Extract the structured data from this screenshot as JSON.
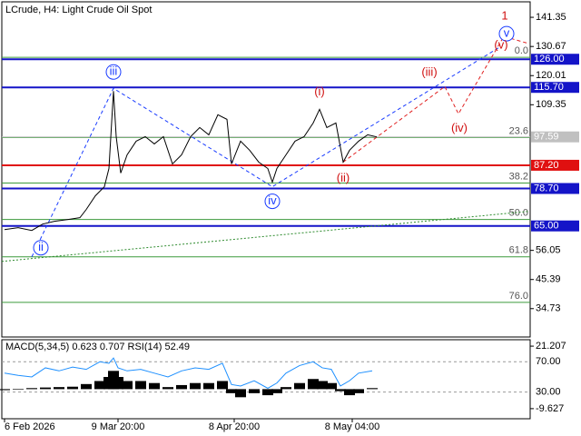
{
  "chart_data": [
    {
      "type": "line",
      "title": "LCrude, H4:  Light Crude Oil Spot",
      "color": "#000000",
      "xlim": [
        0,
        582
      ],
      "xticks": [
        {
          "value": 3,
          "label": "6 Feb 2026"
        },
        {
          "value": 128,
          "label": "9 Mar 20:00"
        },
        {
          "value": 256,
          "label": "8 Apr 20:00"
        },
        {
          "value": 386,
          "label": "8 May 04:00"
        }
      ],
      "ylim": [
        24.35,
        147.02
      ],
      "yticks": [
        141.35,
        130.67,
        120.01,
        109.35,
        56.05,
        45.39,
        34.73
      ],
      "x": [
        3,
        18,
        33,
        45,
        58,
        73,
        86,
        93,
        103,
        113,
        118,
        123,
        126,
        131,
        138,
        148,
        158,
        168,
        178,
        188,
        198,
        208,
        218,
        228,
        238,
        248,
        253,
        263,
        273,
        283,
        293,
        298,
        303,
        313,
        323,
        333,
        343,
        350,
        358,
        368,
        376,
        383,
        393,
        403,
        413
      ],
      "values": [
        63.68,
        64.35,
        63.35,
        65.68,
        66.68,
        67.35,
        68.01,
        71.01,
        76.01,
        79.35,
        86.01,
        114.35,
        97.68,
        84.35,
        91.01,
        96.01,
        97.68,
        95.01,
        97.68,
        87.68,
        91.01,
        97.68,
        101.01,
        98.35,
        105.68,
        104.01,
        87.68,
        96.01,
        92.68,
        88.35,
        86.01,
        81.01,
        86.01,
        91.01,
        96.01,
        97.68,
        102.68,
        107.68,
        101.01,
        102.68,
        88.35,
        92.68,
        96.01,
        98.35,
        97.59
      ],
      "wave_lines": [
        {
          "color": "#1a3cff",
          "style": "dashed",
          "x": [
            33,
            123,
            298,
            548
          ],
          "values": [
            53.68,
            115.35,
            79.35,
            130.35
          ]
        },
        {
          "color": "#e02020",
          "style": "dashed",
          "x": [
            376,
            488,
            503,
            553,
            581
          ],
          "values": [
            88.35,
            116.02,
            106.02,
            134.35,
            131.68
          ]
        },
        {
          "color": "#2e8b2e",
          "style": "dotted",
          "x": [
            0,
            581
          ],
          "values": [
            52.02,
            70.35
          ]
        }
      ],
      "fib_levels": [
        {
          "label": "0.0",
          "value": 126.68
        },
        {
          "label": "23.6",
          "value": 97.35
        },
        {
          "label": "38.2",
          "value": 80.68
        },
        {
          "label": "50.0",
          "value": 67.35
        },
        {
          "label": "61.8",
          "value": 53.68
        },
        {
          "label": "76.0",
          "value": 37.02
        }
      ],
      "price_levels": [
        {
          "value": 126.0,
          "label": "126.00",
          "color": "#1414c8"
        },
        {
          "value": 115.7,
          "label": "115.70",
          "color": "#1414c8"
        },
        {
          "value": 97.59,
          "label": "97.59",
          "color": "#c0c0c0"
        },
        {
          "value": 87.2,
          "label": "87.20",
          "color": "#e01010"
        },
        {
          "value": 78.7,
          "label": "78.70",
          "color": "#1414c8"
        },
        {
          "value": 65.0,
          "label": "65.00",
          "color": "#1414c8"
        }
      ],
      "wave_labels": [
        {
          "label": "ii",
          "x": 43,
          "y": 57.02,
          "color": "#1a3cff",
          "circle": true
        },
        {
          "label": "iii",
          "x": 123,
          "y": 121.35,
          "color": "#1a3cff",
          "circle": true
        },
        {
          "label": "iv",
          "x": 298,
          "y": 74.02,
          "color": "#1a3cff",
          "circle": true
        },
        {
          "label": "v",
          "x": 556,
          "y": 135.35,
          "color": "#1a3cff",
          "circle": true
        },
        {
          "label": "1",
          "x": 554,
          "y": 141.68,
          "color": "#d01010",
          "circle": false
        },
        {
          "label": "(i)",
          "x": 350,
          "y": 114.0,
          "color": "#d01010",
          "circle": false
        },
        {
          "label": "(ii)",
          "x": 376,
          "y": 82.35,
          "color": "#d01010",
          "circle": false
        },
        {
          "label": "(iii)",
          "x": 471,
          "y": 121.02,
          "color": "#d01010",
          "circle": false
        },
        {
          "label": "(iv)",
          "x": 504,
          "y": 100.68,
          "color": "#d01010",
          "circle": false
        },
        {
          "label": "(v)",
          "x": 550,
          "y": 131.02,
          "color": "#d01010",
          "circle": false
        }
      ]
    },
    {
      "type": "combo",
      "title": "MACD(5,34,5) 0.623 0.707 RSI(14) 52.49",
      "xlim": [
        0,
        582
      ],
      "ylim": [
        -14.61,
        24.38
      ],
      "yticks": [
        21.207,
        -9.627
      ],
      "y2lim": [
        -5.15,
        99.09
      ],
      "y2ticks": [
        {
          "value": 70,
          "label": "70.00"
        },
        {
          "value": 30,
          "label": "30.00"
        }
      ],
      "x": [
        3,
        18,
        33,
        48,
        63,
        78,
        93,
        108,
        118,
        123,
        128,
        138,
        153,
        168,
        183,
        198,
        213,
        228,
        243,
        253,
        263,
        278,
        293,
        303,
        313,
        328,
        343,
        353,
        363,
        373,
        383,
        393,
        408
      ],
      "series": [
        {
          "type": "bar",
          "color": "#000000",
          "values": [
            -0.5,
            -0.3,
            0.5,
            0.8,
            1,
            1.2,
            2.5,
            4,
            6,
            9,
            6,
            4,
            4,
            3,
            1,
            2,
            3,
            3,
            4,
            -2,
            -4,
            -2,
            -3,
            -2,
            1,
            3,
            5,
            4,
            3,
            -1,
            -3,
            -2,
            0.5
          ]
        },
        {
          "type": "line",
          "axis": "y2",
          "color": "#1e90ff",
          "values": [
            55,
            52,
            50,
            62,
            58,
            63,
            60,
            70,
            68,
            75,
            62,
            58,
            60,
            55,
            50,
            58,
            62,
            60,
            68,
            40,
            38,
            45,
            35,
            42,
            55,
            65,
            70,
            62,
            60,
            38,
            45,
            55,
            58
          ]
        }
      ]
    }
  ]
}
